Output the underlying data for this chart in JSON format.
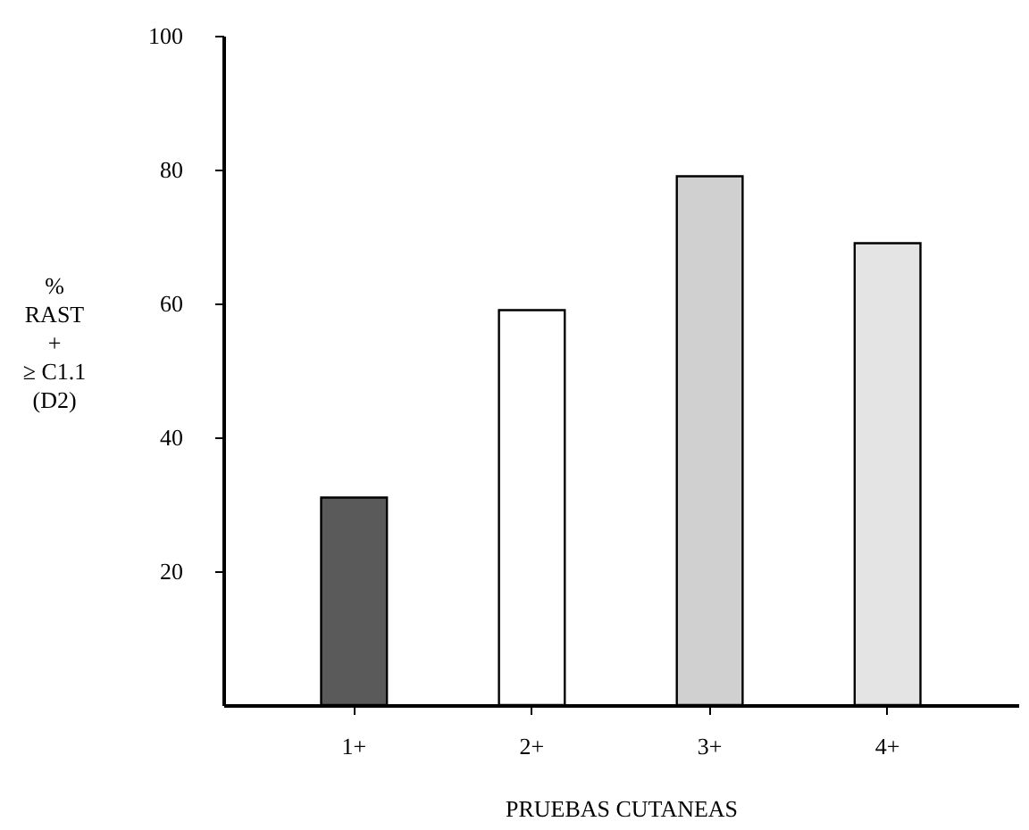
{
  "chart_data": {
    "type": "bar",
    "categories": [
      "1+",
      "2+",
      "3+",
      "4+"
    ],
    "values": [
      31,
      59,
      79,
      69
    ],
    "colors": [
      "#5a5a5a",
      "#ffffff",
      "#d0d0d0",
      "#e4e4e4"
    ],
    "xlabel": "PRUEBAS CUTANEAS",
    "ylabel": "%\nRAST\n+\n≥ C1.1\n(D2)",
    "ylim": [
      0,
      100
    ],
    "yticks": [
      20,
      40,
      60,
      80,
      100
    ],
    "grid": false
  }
}
